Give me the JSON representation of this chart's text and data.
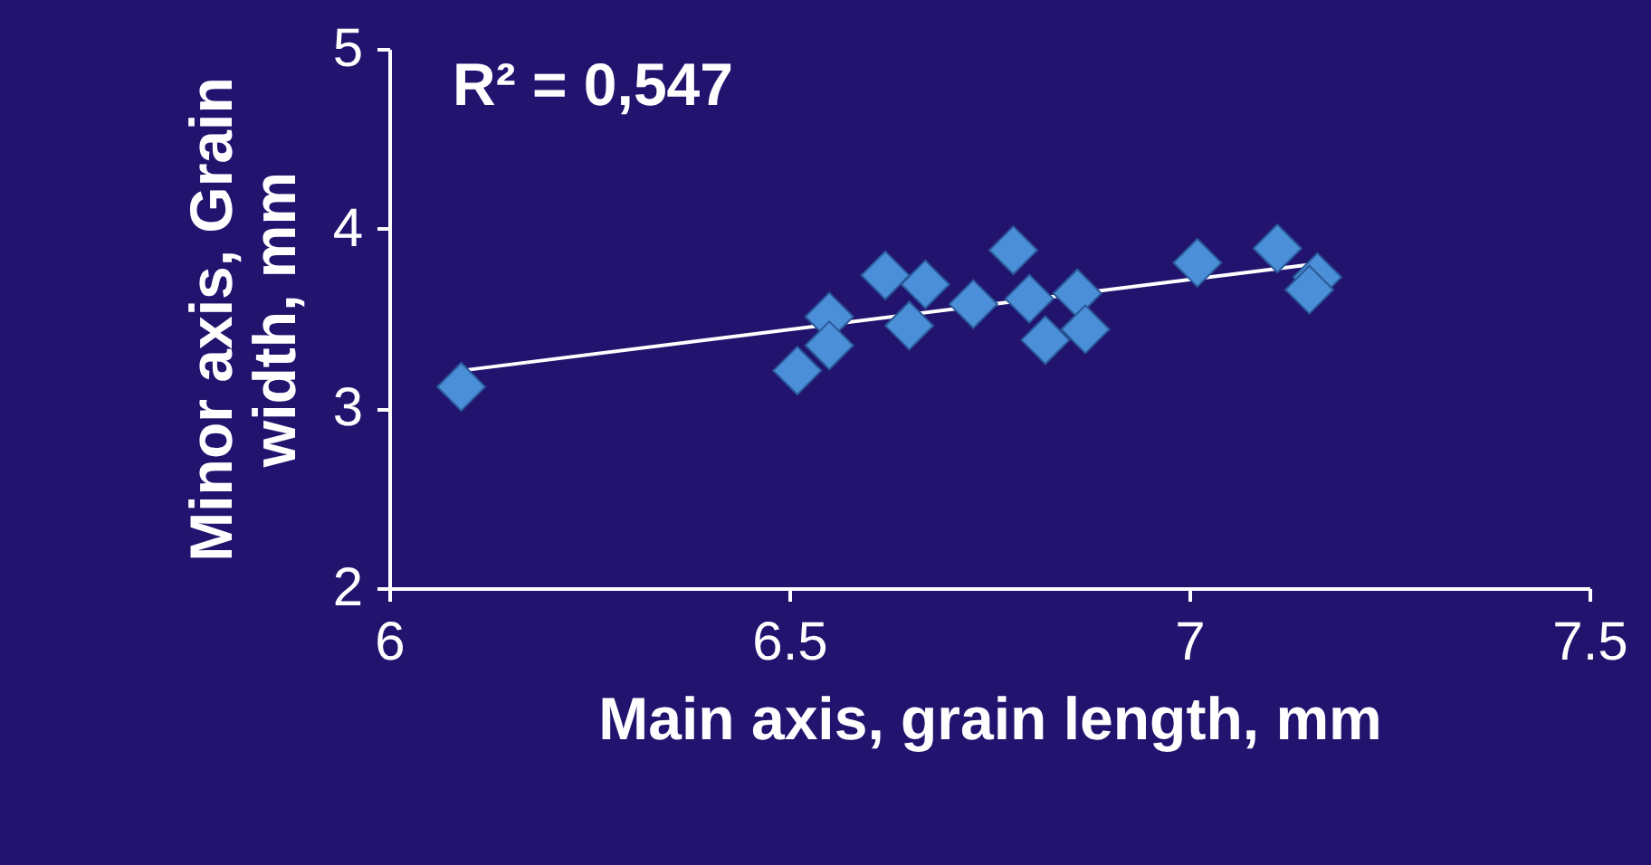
{
  "chart_data": {
    "type": "scatter",
    "xlabel": "Main axis, grain length, mm",
    "ylabel": "Minor axis, Grain\nwidth, mm",
    "annotations": [
      "R² = 0,547"
    ],
    "xlim": [
      6,
      7.5
    ],
    "xticks": [
      6,
      6.5,
      7,
      7.5
    ],
    "ylim": [
      2,
      5
    ],
    "yticks": [
      2,
      3,
      4,
      5
    ],
    "grid": false,
    "series": [
      {
        "type": "line",
        "color": "#ffffff",
        "x": [
          6.09,
          7.15
        ],
        "values": [
          3.21,
          3.8
        ]
      },
      {
        "type": "scatter",
        "marker": "diamond",
        "color": "#4a8fd8",
        "x": [
          6.09,
          6.51,
          6.55,
          6.55,
          6.62,
          6.65,
          6.67,
          6.73,
          6.78,
          6.8,
          6.82,
          6.86,
          6.87,
          7.01,
          7.11,
          7.16,
          7.15
        ],
        "values": [
          3.12,
          3.21,
          3.51,
          3.35,
          3.74,
          3.46,
          3.69,
          3.58,
          3.88,
          3.61,
          3.38,
          3.64,
          3.44,
          3.81,
          3.89,
          3.73,
          3.66
        ]
      }
    ]
  }
}
